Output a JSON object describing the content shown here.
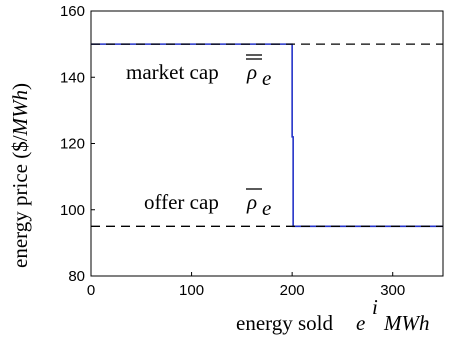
{
  "chart_data": {
    "type": "line",
    "xlabel": {
      "text": "energy sold",
      "symbol": "e",
      "sup": "i",
      "unit": "MWh"
    },
    "ylabel": {
      "text": "energy price ($/",
      "unit": "MWh",
      "close": ")"
    },
    "xlim": [
      0,
      350
    ],
    "ylim": [
      80,
      160
    ],
    "x_ticks": [
      0,
      100,
      200,
      300
    ],
    "y_ticks": [
      80,
      100,
      120,
      140,
      160
    ],
    "grid": false,
    "series": [
      {
        "style": "solid",
        "color": "#2433c8",
        "points": [
          [
            0,
            150
          ],
          [
            200,
            150
          ],
          [
            200,
            122
          ],
          [
            201,
            122
          ],
          [
            201,
            95
          ],
          [
            350,
            95
          ]
        ]
      },
      {
        "style": "dashed",
        "color": "#000000",
        "points": [
          [
            0,
            150
          ],
          [
            350,
            150
          ]
        ]
      },
      {
        "style": "dashed",
        "color": "#000000",
        "points": [
          [
            0,
            95
          ],
          [
            350,
            95
          ]
        ]
      }
    ],
    "annotations": [
      {
        "id": "market",
        "text": "market cap",
        "symbol": "ρ",
        "sub": "e",
        "x": 5,
        "y": 140
      },
      {
        "id": "offer",
        "text": "offer cap",
        "symbol": "ρ",
        "sub": "e",
        "x": 25,
        "y": 99
      }
    ]
  }
}
